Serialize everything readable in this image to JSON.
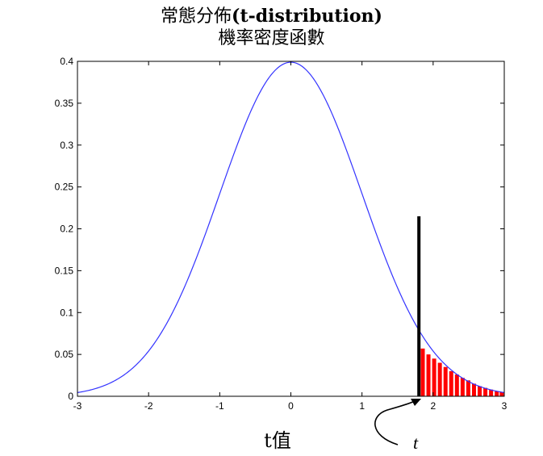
{
  "chart_data": {
    "type": "line",
    "title_line1_cjk": "常態分佈",
    "title_line1_latin": "(t-distribution)",
    "title_line2": "機率密度函數",
    "xlabel": "t值",
    "annotation_label": "t",
    "xlim": [
      -3,
      3
    ],
    "ylim": [
      0,
      0.4
    ],
    "x_ticks": [
      -3,
      -2,
      -1,
      0,
      1,
      2,
      3
    ],
    "x_tick_labels": [
      "-3",
      "-2",
      "-1",
      "0",
      "1",
      "2",
      "3"
    ],
    "y_ticks": [
      0,
      0.05,
      0.1,
      0.15,
      0.2,
      0.25,
      0.3,
      0.35,
      0.4
    ],
    "y_tick_labels": [
      "0",
      "0.05",
      "0.1",
      "0.15",
      "0.2",
      "0.25",
      "0.3",
      "0.35",
      "0.4"
    ],
    "grid": false,
    "series": [
      {
        "color": "#3333ff",
        "x": [
          -3,
          -2.75,
          -2.5,
          -2.25,
          -2,
          -1.75,
          -1.5,
          -1.25,
          -1,
          -0.75,
          -0.5,
          -0.25,
          0,
          0.25,
          0.5,
          0.75,
          1,
          1.25,
          1.5,
          1.75,
          2,
          2.25,
          2.5,
          2.75,
          3
        ],
        "y": [
          0.0044,
          0.0091,
          0.0175,
          0.0317,
          0.054,
          0.0863,
          0.1295,
          0.1826,
          0.242,
          0.3011,
          0.3521,
          0.3867,
          0.3989,
          0.3867,
          0.3521,
          0.3011,
          0.242,
          0.1826,
          0.1295,
          0.0863,
          0.054,
          0.0317,
          0.0175,
          0.0091,
          0.0044
        ]
      }
    ],
    "critical_t": 1.8,
    "critical_line_top": 0.215,
    "shaded_tail_color": "#ff0000",
    "shaded_bars": [
      {
        "x": 1.86,
        "y": 0.057
      },
      {
        "x": 1.94,
        "y": 0.05
      },
      {
        "x": 2.02,
        "y": 0.045
      },
      {
        "x": 2.1,
        "y": 0.04
      },
      {
        "x": 2.18,
        "y": 0.035
      },
      {
        "x": 2.26,
        "y": 0.03
      },
      {
        "x": 2.34,
        "y": 0.026
      },
      {
        "x": 2.42,
        "y": 0.022
      },
      {
        "x": 2.5,
        "y": 0.019
      },
      {
        "x": 2.58,
        "y": 0.015
      },
      {
        "x": 2.66,
        "y": 0.012
      },
      {
        "x": 2.74,
        "y": 0.01
      },
      {
        "x": 2.82,
        "y": 0.008
      },
      {
        "x": 2.9,
        "y": 0.006
      },
      {
        "x": 2.97,
        "y": 0.005
      }
    ]
  }
}
